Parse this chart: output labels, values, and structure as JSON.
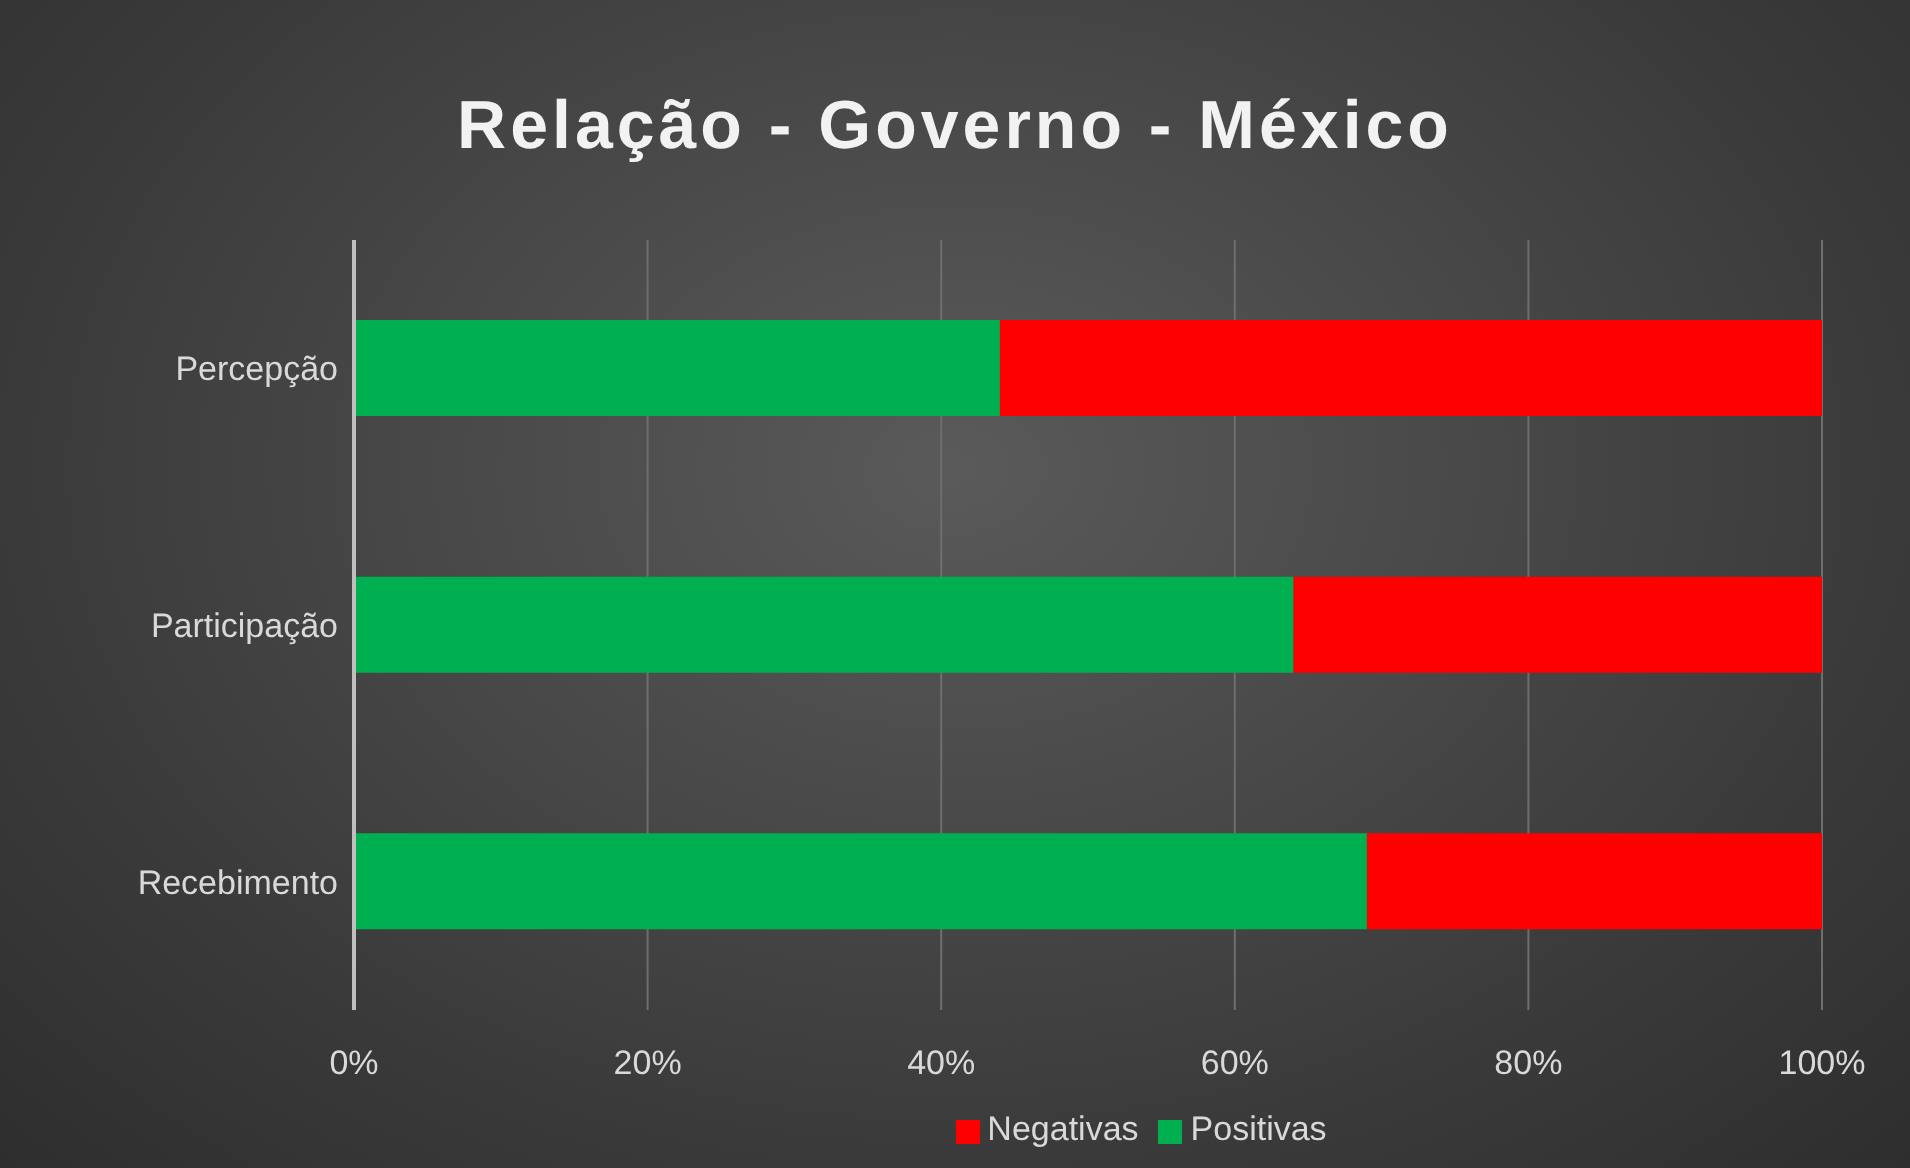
{
  "chart_data": {
    "type": "bar",
    "orientation": "horizontal",
    "stacked": true,
    "title": "Relação - Governo - México",
    "categories": [
      "Percepção",
      "Participação",
      "Recebimento"
    ],
    "series": [
      {
        "name": "Positivas",
        "color": "#00b050",
        "values": [
          44,
          64,
          69
        ]
      },
      {
        "name": "Negativas",
        "color": "#ff0000",
        "values": [
          56,
          36,
          31
        ]
      }
    ],
    "xlim": [
      0,
      100
    ],
    "xticks": [
      {
        "value": 0,
        "label": "0%"
      },
      {
        "value": 20,
        "label": "20%"
      },
      {
        "value": 40,
        "label": "40%"
      },
      {
        "value": 60,
        "label": "60%"
      },
      {
        "value": 80,
        "label": "80%"
      },
      {
        "value": 100,
        "label": "100%"
      }
    ],
    "grid": "x",
    "legend": "bottom"
  }
}
